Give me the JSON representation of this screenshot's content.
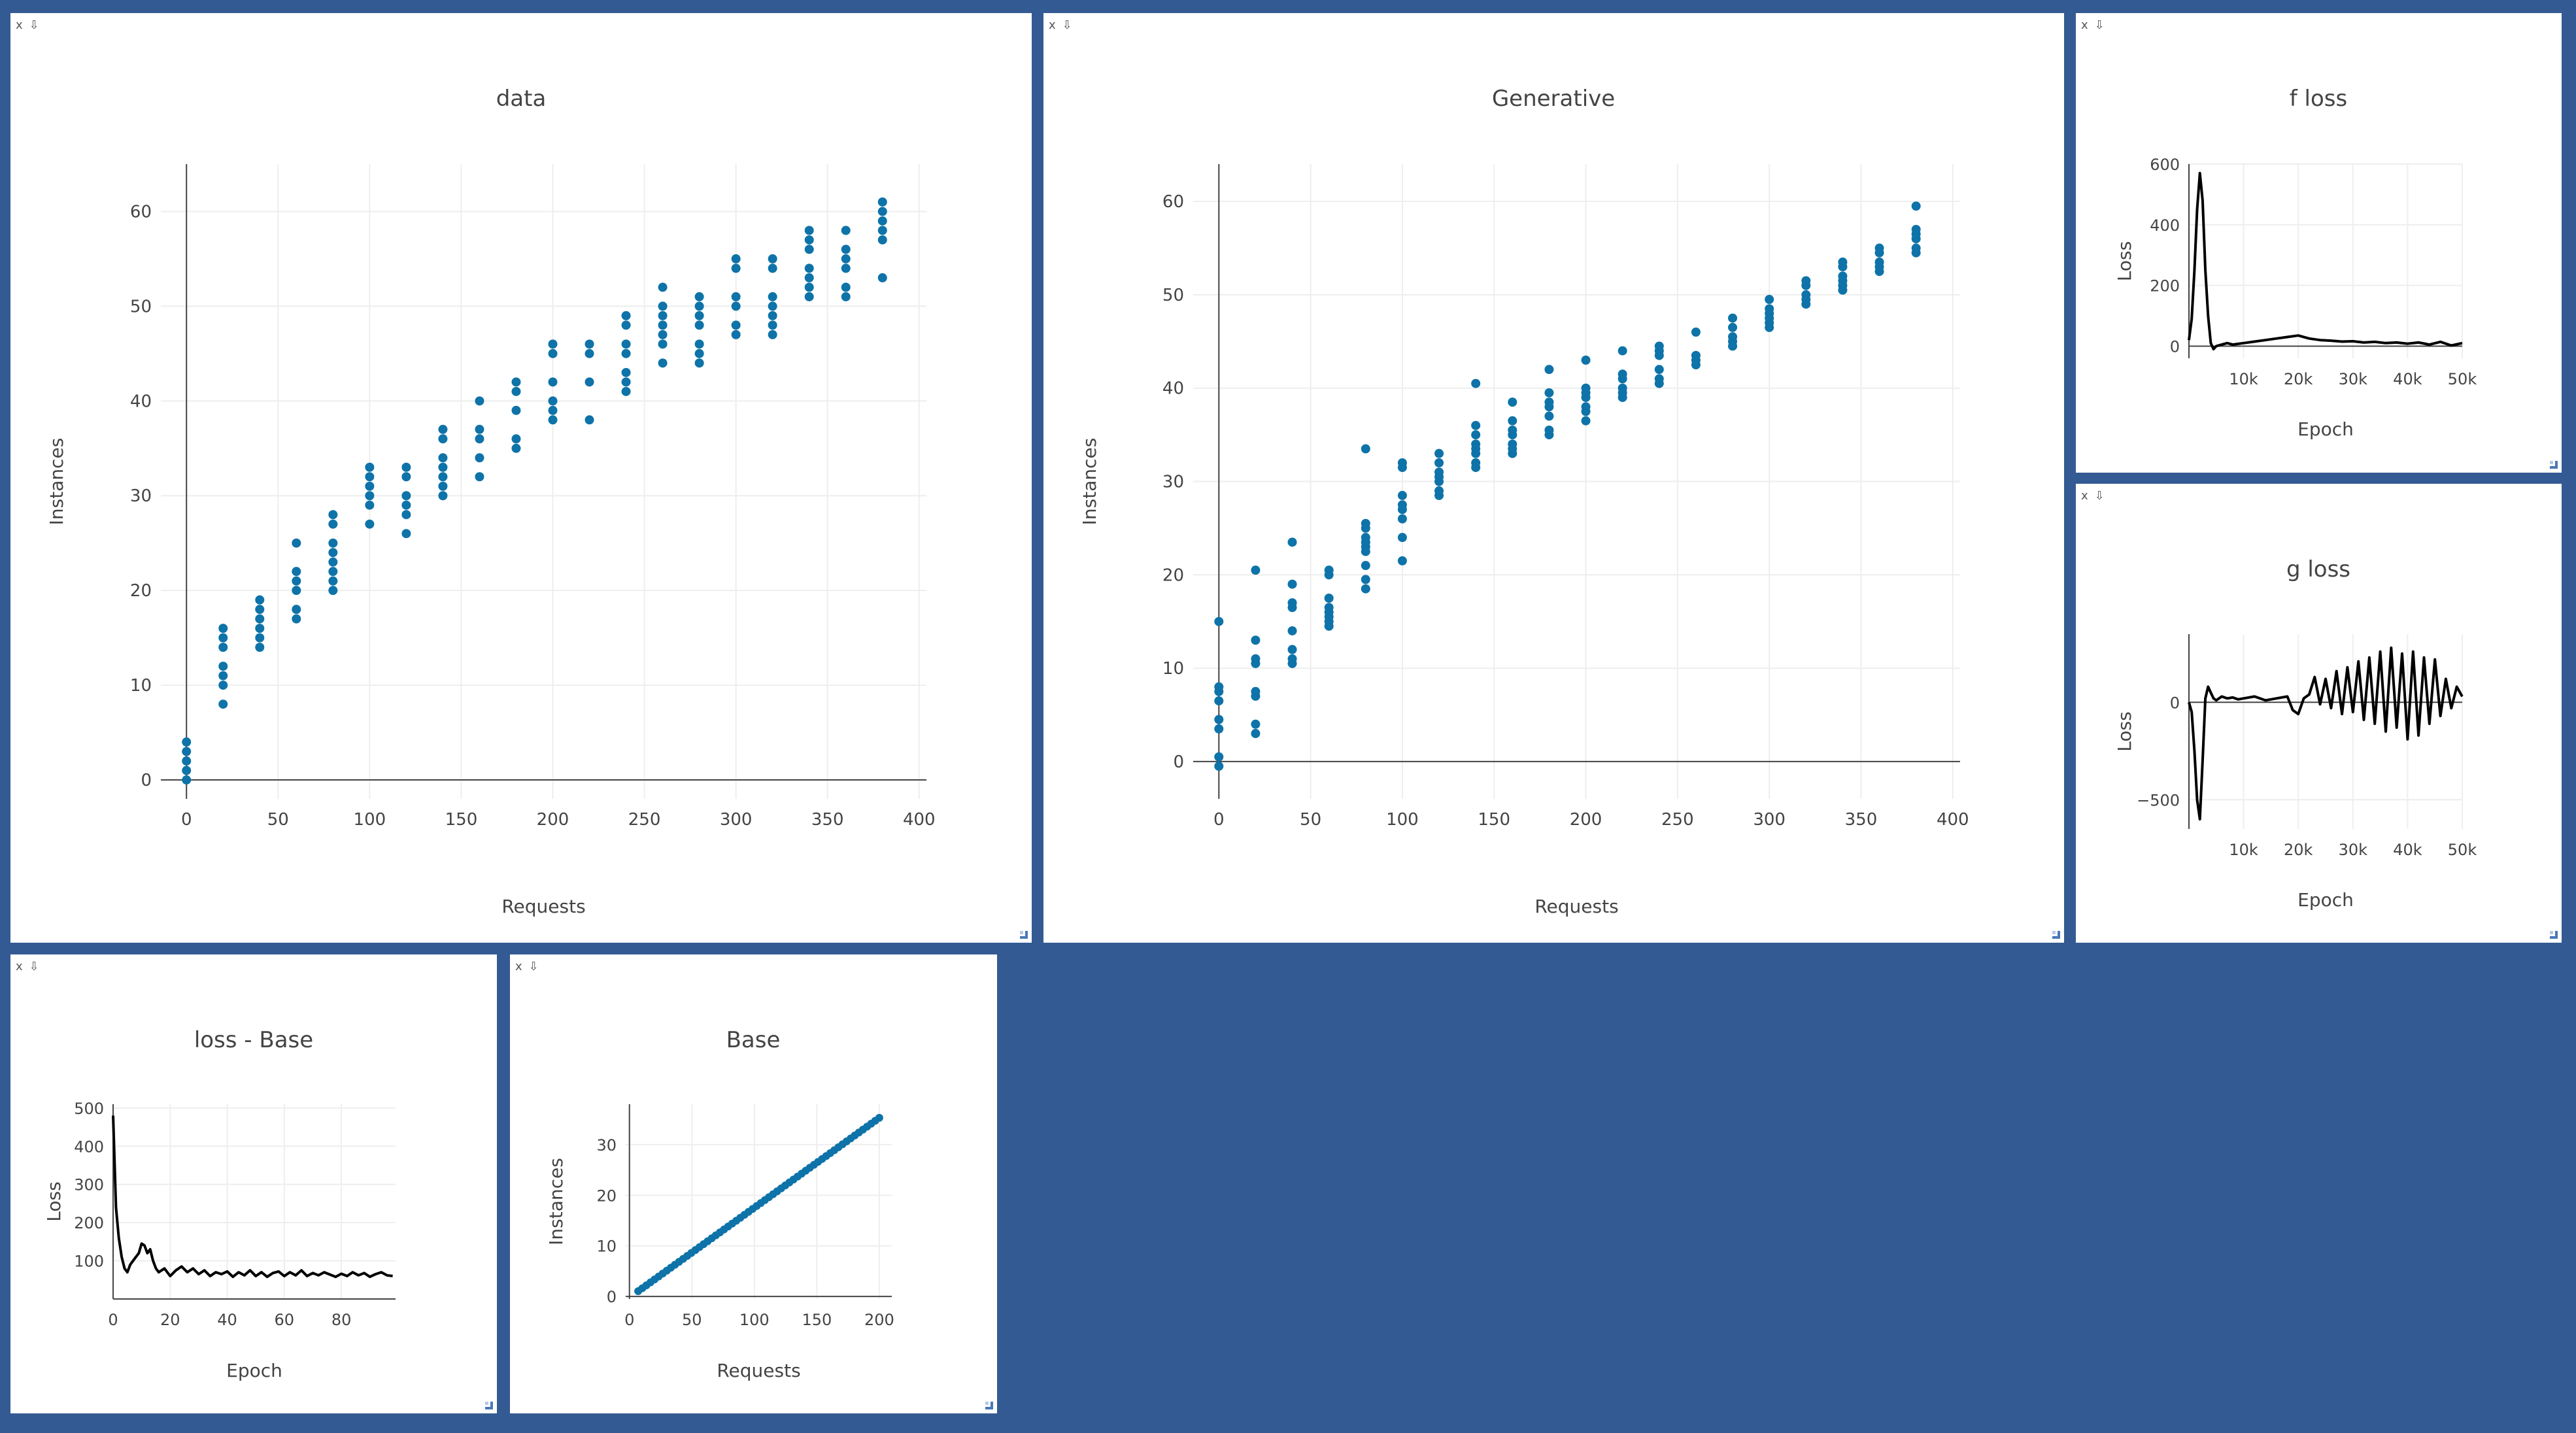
{
  "colors": {
    "background": "#345a93",
    "marker": "#1f77b4",
    "marker_dark": "#0e73a8",
    "line": "#000000",
    "grid": "#eeeeee",
    "zeroline": "#444444"
  },
  "pane_controls": {
    "close": "x",
    "pin": "⇩"
  },
  "panes": [
    {
      "id": "data",
      "chart_data": {
        "type": "scatter",
        "title": "data",
        "xlabel": "Requests",
        "ylabel": "Instances",
        "xlim": [
          -14,
          404
        ],
        "ylim": [
          -2,
          65
        ],
        "xticks": [
          0,
          50,
          100,
          150,
          200,
          250,
          300,
          350,
          400
        ],
        "xtick_labels": [
          "0",
          "50",
          "100",
          "150",
          "200",
          "250",
          "300",
          "350",
          "400"
        ],
        "yticks": [
          0,
          10,
          20,
          30,
          40,
          50,
          60
        ],
        "ytick_labels": [
          "0",
          "10",
          "20",
          "30",
          "40",
          "50",
          "60"
        ],
        "grid": true,
        "groups": [
          {
            "x": 0,
            "y": [
              0,
              1,
              2,
              3,
              4
            ]
          },
          {
            "x": 20,
            "y": [
              8,
              10,
              11,
              12,
              14,
              15,
              16
            ]
          },
          {
            "x": 40,
            "y": [
              14,
              15,
              16,
              17,
              18,
              19
            ]
          },
          {
            "x": 60,
            "y": [
              17,
              18,
              20,
              21,
              22,
              25
            ]
          },
          {
            "x": 80,
            "y": [
              20,
              21,
              22,
              23,
              24,
              25,
              27,
              28
            ]
          },
          {
            "x": 100,
            "y": [
              27,
              29,
              30,
              31,
              32,
              33
            ]
          },
          {
            "x": 120,
            "y": [
              26,
              28,
              29,
              30,
              32,
              33
            ]
          },
          {
            "x": 140,
            "y": [
              30,
              31,
              32,
              33,
              34,
              36,
              37
            ]
          },
          {
            "x": 160,
            "y": [
              32,
              34,
              36,
              37,
              40
            ]
          },
          {
            "x": 180,
            "y": [
              35,
              36,
              39,
              41,
              42
            ]
          },
          {
            "x": 200,
            "y": [
              38,
              39,
              40,
              42,
              45,
              46
            ]
          },
          {
            "x": 220,
            "y": [
              38,
              42,
              45,
              46
            ]
          },
          {
            "x": 240,
            "y": [
              41,
              42,
              43,
              45,
              46,
              48,
              49
            ]
          },
          {
            "x": 260,
            "y": [
              44,
              46,
              47,
              48,
              49,
              50,
              52
            ]
          },
          {
            "x": 280,
            "y": [
              44,
              45,
              46,
              48,
              49,
              50,
              51
            ]
          },
          {
            "x": 300,
            "y": [
              47,
              48,
              50,
              51,
              54,
              55
            ]
          },
          {
            "x": 320,
            "y": [
              47,
              48,
              49,
              50,
              51,
              54,
              55
            ]
          },
          {
            "x": 340,
            "y": [
              51,
              52,
              53,
              54,
              56,
              57,
              58
            ]
          },
          {
            "x": 360,
            "y": [
              51,
              52,
              54,
              55,
              56,
              58
            ]
          },
          {
            "x": 380,
            "y": [
              53,
              57,
              58,
              59,
              60,
              61
            ]
          }
        ]
      }
    },
    {
      "id": "generative",
      "chart_data": {
        "type": "scatter",
        "title": "Generative",
        "xlabel": "Requests",
        "ylabel": "Instances",
        "xlim": [
          -14,
          404
        ],
        "ylim": [
          -4,
          64
        ],
        "xticks": [
          0,
          50,
          100,
          150,
          200,
          250,
          300,
          350,
          400
        ],
        "xtick_labels": [
          "0",
          "50",
          "100",
          "150",
          "200",
          "250",
          "300",
          "350",
          "400"
        ],
        "yticks": [
          0,
          10,
          20,
          30,
          40,
          50,
          60
        ],
        "ytick_labels": [
          "0",
          "10",
          "20",
          "30",
          "40",
          "50",
          "60"
        ],
        "grid": true,
        "groups": [
          {
            "x": 0,
            "y": [
              -0.5,
              0.5,
              3.5,
              4.5,
              6.5,
              7.5,
              8,
              15
            ]
          },
          {
            "x": 20,
            "y": [
              3,
              4,
              7,
              7.5,
              10.5,
              11,
              13,
              20.5
            ]
          },
          {
            "x": 40,
            "y": [
              10.5,
              11,
              12,
              14,
              16.5,
              17,
              19,
              23.5
            ]
          },
          {
            "x": 60,
            "y": [
              14.5,
              15,
              15.5,
              16,
              16.5,
              17.5,
              20,
              20.5
            ]
          },
          {
            "x": 80,
            "y": [
              18.5,
              19.5,
              21,
              22.5,
              23,
              23.5,
              24,
              25,
              25.5,
              33.5
            ]
          },
          {
            "x": 100,
            "y": [
              21.5,
              24,
              26,
              27,
              27.5,
              28.5,
              31.5,
              32
            ]
          },
          {
            "x": 120,
            "y": [
              28.5,
              29,
              30,
              30.5,
              31,
              32,
              33
            ]
          },
          {
            "x": 140,
            "y": [
              31.5,
              32,
              33,
              33.5,
              34,
              35,
              36,
              40.5
            ]
          },
          {
            "x": 160,
            "y": [
              33,
              33.5,
              34,
              35,
              35.5,
              36.5,
              38.5
            ]
          },
          {
            "x": 180,
            "y": [
              35,
              35.5,
              37,
              38,
              38.5,
              39.5,
              42
            ]
          },
          {
            "x": 200,
            "y": [
              36.5,
              37.5,
              38,
              39,
              39.5,
              40,
              43
            ]
          },
          {
            "x": 220,
            "y": [
              39,
              39.5,
              40,
              41,
              41.5,
              44
            ]
          },
          {
            "x": 240,
            "y": [
              40.5,
              41,
              42,
              43.5,
              44,
              44.5
            ]
          },
          {
            "x": 260,
            "y": [
              42.5,
              43,
              43.5,
              46
            ]
          },
          {
            "x": 280,
            "y": [
              44.5,
              45,
              45.5,
              46.5,
              47.5
            ]
          },
          {
            "x": 300,
            "y": [
              46.5,
              47,
              47.5,
              48,
              48.5,
              49.5
            ]
          },
          {
            "x": 320,
            "y": [
              49,
              49.5,
              50,
              51,
              51.5
            ]
          },
          {
            "x": 340,
            "y": [
              50.5,
              51,
              51.5,
              52,
              53,
              53.5
            ]
          },
          {
            "x": 360,
            "y": [
              52.5,
              53,
              53.5,
              54.5,
              55
            ]
          },
          {
            "x": 380,
            "y": [
              54.5,
              55,
              56,
              56.5,
              57,
              59.5
            ]
          }
        ]
      }
    },
    {
      "id": "f-loss",
      "chart_data": {
        "type": "line",
        "title": "f loss",
        "xlabel": "Epoch",
        "ylabel": "Loss",
        "xlim": [
          0,
          50000
        ],
        "ylim": [
          -40,
          600
        ],
        "xticks": [
          10000,
          20000,
          30000,
          40000,
          50000
        ],
        "xtick_labels": [
          "10k",
          "20k",
          "30k",
          "40k",
          "50k"
        ],
        "yticks": [
          0,
          200,
          400,
          600
        ],
        "ytick_labels": [
          "0",
          "200",
          "400",
          "600"
        ],
        "grid": true,
        "x": [
          0,
          500,
          1000,
          1500,
          2000,
          2500,
          3000,
          3500,
          4000,
          4500,
          5000,
          6000,
          7000,
          8000,
          10000,
          12000,
          14000,
          16000,
          18000,
          20000,
          22000,
          24000,
          26000,
          28000,
          30000,
          32000,
          34000,
          36000,
          38000,
          40000,
          42000,
          44000,
          46000,
          48000,
          50000
        ],
        "y": [
          20,
          90,
          250,
          450,
          570,
          480,
          250,
          100,
          10,
          -10,
          0,
          5,
          10,
          5,
          10,
          15,
          20,
          25,
          30,
          35,
          25,
          20,
          18,
          15,
          16,
          12,
          14,
          10,
          12,
          8,
          12,
          5,
          14,
          2,
          10
        ]
      }
    },
    {
      "id": "g-loss",
      "chart_data": {
        "type": "line",
        "title": "g loss",
        "xlabel": "Epoch",
        "ylabel": "Loss",
        "xlim": [
          0,
          50000
        ],
        "ylim": [
          -650,
          350
        ],
        "xticks": [
          10000,
          20000,
          30000,
          40000,
          50000
        ],
        "xtick_labels": [
          "10k",
          "20k",
          "30k",
          "40k",
          "50k"
        ],
        "yticks": [
          -500,
          0
        ],
        "ytick_labels": [
          "−500",
          "0"
        ],
        "grid": true,
        "x": [
          0,
          500,
          1000,
          1500,
          2000,
          2500,
          3000,
          3500,
          4000,
          4500,
          5000,
          6000,
          7000,
          8000,
          9000,
          10000,
          12000,
          14000,
          16000,
          18000,
          19000,
          20000,
          21000,
          22000,
          23000,
          24000,
          25000,
          26000,
          27000,
          28000,
          29000,
          30000,
          31000,
          32000,
          33000,
          34000,
          35000,
          36000,
          37000,
          38000,
          39000,
          40000,
          41000,
          42000,
          43000,
          44000,
          45000,
          46000,
          47000,
          48000,
          49000,
          50000
        ],
        "y": [
          0,
          -50,
          -250,
          -500,
          -600,
          -300,
          20,
          80,
          50,
          20,
          10,
          30,
          20,
          25,
          15,
          20,
          30,
          10,
          20,
          30,
          -40,
          -60,
          20,
          40,
          130,
          -10,
          120,
          -30,
          160,
          -60,
          180,
          -50,
          210,
          -90,
          230,
          -110,
          260,
          -150,
          280,
          -130,
          250,
          -190,
          260,
          -170,
          230,
          -110,
          220,
          -70,
          120,
          -30,
          80,
          30
        ]
      }
    },
    {
      "id": "loss-base",
      "chart_data": {
        "type": "line",
        "title": "loss - Base",
        "xlabel": "Epoch",
        "ylabel": "Loss",
        "xlim": [
          0,
          99
        ],
        "ylim": [
          0,
          510
        ],
        "xticks": [
          0,
          20,
          40,
          60,
          80
        ],
        "xtick_labels": [
          "0",
          "20",
          "40",
          "60",
          "80"
        ],
        "yticks": [
          100,
          200,
          300,
          400,
          500
        ],
        "ytick_labels": [
          "100",
          "200",
          "300",
          "400",
          "500"
        ],
        "grid": true,
        "x": [
          0,
          1,
          2,
          3,
          4,
          5,
          6,
          7,
          8,
          9,
          10,
          11,
          12,
          13,
          14,
          15,
          16,
          18,
          20,
          22,
          24,
          26,
          28,
          30,
          32,
          34,
          36,
          38,
          40,
          42,
          44,
          46,
          48,
          50,
          52,
          54,
          56,
          58,
          60,
          62,
          64,
          66,
          68,
          70,
          72,
          74,
          76,
          78,
          80,
          82,
          84,
          86,
          88,
          90,
          92,
          94,
          96,
          98
        ],
        "y": [
          480,
          240,
          160,
          110,
          80,
          70,
          90,
          100,
          110,
          120,
          145,
          140,
          120,
          130,
          100,
          80,
          70,
          80,
          60,
          75,
          85,
          70,
          80,
          65,
          75,
          60,
          70,
          65,
          72,
          58,
          70,
          62,
          75,
          60,
          70,
          58,
          68,
          72,
          60,
          70,
          62,
          75,
          60,
          68,
          62,
          70,
          64,
          58,
          66,
          60,
          70,
          62,
          68,
          58,
          65,
          70,
          62,
          60
        ]
      }
    },
    {
      "id": "base",
      "chart_data": {
        "type": "scatter",
        "title": "Base",
        "xlabel": "Requests",
        "ylabel": "Instances",
        "xlim": [
          -3,
          210
        ],
        "ylim": [
          -0.5,
          38
        ],
        "xticks": [
          0,
          50,
          100,
          150,
          200
        ],
        "xtick_labels": [
          "0",
          "50",
          "100",
          "150",
          "200"
        ],
        "yticks": [
          0,
          10,
          20,
          30
        ],
        "ytick_labels": [
          "0",
          "10",
          "20",
          "30"
        ],
        "grid": true,
        "x_start": 7,
        "x_end": 200,
        "slope": 0.1775,
        "intercept": -0.2,
        "n_points": 60
      }
    }
  ]
}
